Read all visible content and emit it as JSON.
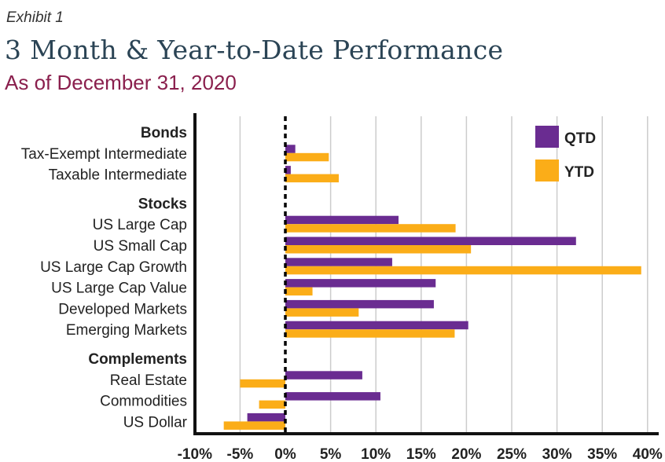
{
  "header": {
    "exhibit": "Exhibit 1",
    "title": "3 Month & Year-to-Date Performance",
    "subtitle": "As of December 31, 2020"
  },
  "colors": {
    "qtd": "#6a2c91",
    "ytd": "#fbad18",
    "title": "#2b4455",
    "subtitle": "#8a1f4d",
    "grid": "#cccccc",
    "axis": "#111111"
  },
  "chart_data": {
    "type": "bar",
    "orientation": "horizontal",
    "title": "3 Month & Year-to-Date Performance",
    "xlabel": "",
    "ylabel": "",
    "xlim": [
      -10,
      40
    ],
    "xticks": [
      -10,
      -5,
      0,
      5,
      10,
      15,
      20,
      25,
      30,
      35,
      40
    ],
    "xtick_labels": [
      "-10%",
      "-5%",
      "0%",
      "5%",
      "10%",
      "15%",
      "20%",
      "25%",
      "30%",
      "35%",
      "40%"
    ],
    "grid": true,
    "legend_position": "top-right",
    "groups": [
      {
        "name": "Bonds",
        "categories": [
          {
            "name": "Tax-Exempt Intermediate",
            "qtd": 1.1,
            "ytd": 4.8
          },
          {
            "name": "Taxable Intermediate",
            "qtd": 0.6,
            "ytd": 5.9
          }
        ]
      },
      {
        "name": "Stocks",
        "categories": [
          {
            "name": "US Large Cap",
            "qtd": 12.5,
            "ytd": 18.8
          },
          {
            "name": "US Small Cap",
            "qtd": 32.1,
            "ytd": 20.5
          },
          {
            "name": "US Large Cap Growth",
            "qtd": 11.8,
            "ytd": 39.3
          },
          {
            "name": "US Large Cap Value",
            "qtd": 16.6,
            "ytd": 3.0
          },
          {
            "name": "Developed Markets",
            "qtd": 16.4,
            "ytd": 8.1
          },
          {
            "name": "Emerging Markets",
            "qtd": 20.2,
            "ytd": 18.7
          }
        ]
      },
      {
        "name": "Complements",
        "categories": [
          {
            "name": "Real Estate",
            "qtd": 8.5,
            "ytd": -5.0
          },
          {
            "name": "Commodities",
            "qtd": 10.5,
            "ytd": -2.9
          },
          {
            "name": "US Dollar",
            "qtd": -4.2,
            "ytd": -6.8
          }
        ]
      }
    ],
    "series": [
      {
        "name": "QTD"
      },
      {
        "name": "YTD"
      }
    ]
  }
}
